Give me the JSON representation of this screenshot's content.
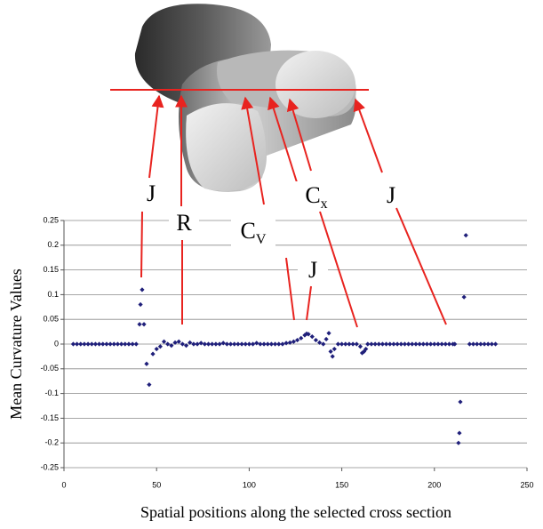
{
  "chart_data": {
    "type": "scatter",
    "xlabel": "Spatial positions along the selected cross section",
    "ylabel": "Mean Curvature Values",
    "color": "#1f1f7a",
    "xlim": [
      0,
      250
    ],
    "xticks": [
      0,
      50,
      100,
      150,
      200,
      250
    ],
    "ylim": [
      -0.25,
      0.25
    ],
    "yticks": [
      0.25,
      0.2,
      0.15,
      0.1,
      0.05,
      0,
      -0.05,
      -0.1,
      -0.15,
      -0.2,
      -0.25
    ],
    "grid": true,
    "x": [
      5,
      7,
      9,
      11,
      13,
      15,
      17,
      19,
      21,
      23,
      25,
      27,
      29,
      31,
      33,
      35,
      37,
      39,
      40.8,
      41.3,
      42.2,
      43.2,
      44.6,
      46,
      48,
      50,
      52,
      54,
      56,
      58,
      60,
      62,
      64,
      66,
      68,
      70,
      72,
      74,
      76,
      78,
      80,
      82,
      84,
      86,
      88,
      90,
      92,
      94,
      96,
      98,
      100,
      102,
      104,
      106,
      108,
      110,
      112,
      114,
      116,
      118,
      120,
      122,
      124,
      126,
      128,
      130,
      131,
      132,
      134,
      136,
      138,
      140,
      141.6,
      143,
      144,
      145,
      146,
      148,
      150,
      152,
      154,
      156,
      158,
      160,
      161,
      162,
      163,
      164,
      166,
      168,
      170,
      172,
      174,
      176,
      178,
      180,
      182,
      184,
      186,
      188,
      190,
      192,
      194,
      196,
      198,
      200,
      202,
      204,
      206,
      208,
      210,
      211,
      213,
      213.5,
      214,
      216,
      217,
      219,
      221,
      223,
      225,
      227,
      229,
      231,
      233
    ],
    "values": [
      0,
      0,
      0,
      0,
      0,
      0,
      0,
      0,
      0,
      0,
      0,
      0,
      0,
      0,
      0,
      0,
      0,
      0,
      0.04,
      0.08,
      0.11,
      0.04,
      -0.04,
      -0.082,
      -0.02,
      -0.01,
      -0.005,
      0.005,
      0,
      -0.003,
      0.003,
      0.005,
      0,
      -0.003,
      0.003,
      0,
      0,
      0.002,
      0,
      0,
      0,
      0,
      0,
      0.002,
      0,
      0,
      0,
      0,
      0,
      0,
      0,
      0,
      0.002,
      0,
      0,
      0,
      0,
      0,
      0,
      0,
      0.002,
      0.003,
      0.005,
      0.008,
      0.012,
      0.018,
      0.021,
      0.02,
      0.015,
      0.008,
      0.003,
      0,
      0.01,
      0.022,
      -0.015,
      -0.025,
      -0.01,
      0,
      0,
      0,
      0,
      0,
      0,
      -0.005,
      -0.018,
      -0.015,
      -0.01,
      0,
      0,
      0,
      0,
      0,
      0,
      0,
      0,
      0,
      0,
      0,
      0,
      0,
      0,
      0,
      0,
      0,
      0,
      0,
      0,
      0,
      0,
      0,
      0,
      0,
      -0.2,
      -0.18,
      -0.117,
      0.095,
      0.22,
      0,
      0,
      0,
      0,
      0,
      0,
      0,
      0
    ],
    "annotations": [
      {
        "text": "J"
      },
      {
        "text": "R"
      },
      {
        "text": "C",
        "sub": "V"
      },
      {
        "text": "J"
      },
      {
        "text": "C",
        "sub": "x"
      },
      {
        "text": "J"
      }
    ]
  }
}
